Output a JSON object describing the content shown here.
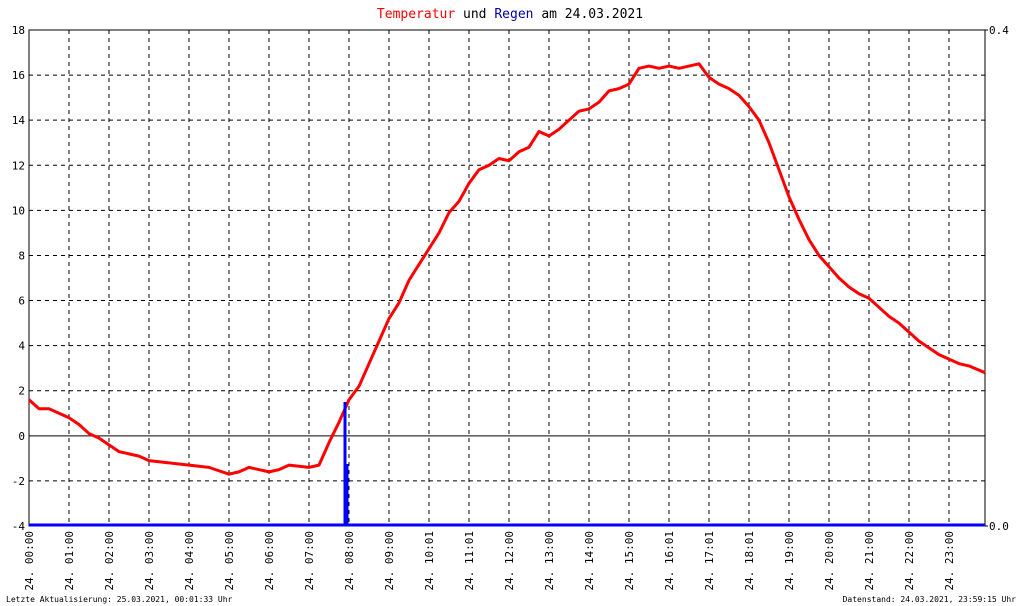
{
  "chart_data": {
    "type": "line",
    "title_parts": [
      "Temperatur",
      "und",
      "Regen",
      "am 24.03.2021"
    ],
    "footer_left": "Letzte Aktualisierung: 25.03.2021, 00:01:33 Uhr",
    "footer_right": "Datenstand: 24.03.2021, 23:59:15 Uhr",
    "xlim": [
      0,
      23.9
    ],
    "xticks": [
      {
        "value": 0,
        "label": "24. 00:00"
      },
      {
        "value": 1,
        "label": "24. 01:00"
      },
      {
        "value": 2,
        "label": "24. 02:00"
      },
      {
        "value": 3,
        "label": "24. 03:00"
      },
      {
        "value": 4,
        "label": "24. 04:00"
      },
      {
        "value": 5,
        "label": "24. 05:00"
      },
      {
        "value": 6,
        "label": "24. 06:00"
      },
      {
        "value": 7,
        "label": "24. 07:00"
      },
      {
        "value": 8,
        "label": "24. 08:00"
      },
      {
        "value": 9,
        "label": "24. 09:00"
      },
      {
        "value": 10,
        "label": "24. 10:01"
      },
      {
        "value": 11,
        "label": "24. 11:01"
      },
      {
        "value": 12,
        "label": "24. 12:00"
      },
      {
        "value": 13,
        "label": "24. 13:00"
      },
      {
        "value": 14,
        "label": "24. 14:00"
      },
      {
        "value": 15,
        "label": "24. 15:00"
      },
      {
        "value": 16,
        "label": "24. 16:01"
      },
      {
        "value": 17,
        "label": "24. 17:01"
      },
      {
        "value": 18,
        "label": "24. 18:01"
      },
      {
        "value": 19,
        "label": "24. 19:00"
      },
      {
        "value": 20,
        "label": "24. 20:00"
      },
      {
        "value": 21,
        "label": "24. 21:00"
      },
      {
        "value": 22,
        "label": "24. 22:00"
      },
      {
        "value": 23,
        "label": "24. 23:00"
      }
    ],
    "ylim": [
      -4,
      18
    ],
    "yticks": [
      -4,
      -2,
      0,
      2,
      4,
      6,
      8,
      10,
      12,
      14,
      16,
      18
    ],
    "y2lim": [
      0,
      0.4
    ],
    "y2ticks": [
      {
        "value": 0,
        "label": "0.0"
      },
      0.4
    ],
    "grid": true,
    "series": [
      {
        "name": "Temperatur",
        "color": "#ff0000",
        "type": "line",
        "x": [
          0,
          0.25,
          0.5,
          0.75,
          1,
          1.25,
          1.5,
          1.75,
          2,
          2.25,
          2.5,
          2.75,
          3,
          3.5,
          4,
          4.5,
          5,
          5.25,
          5.5,
          6,
          6.25,
          6.5,
          7,
          7.25,
          7.5,
          7.75,
          8,
          8.25,
          8.5,
          8.75,
          9,
          9.25,
          9.5,
          9.75,
          10,
          10.25,
          10.5,
          10.75,
          11,
          11.25,
          11.5,
          11.75,
          12,
          12.25,
          12.5,
          12.75,
          13,
          13.25,
          13.5,
          13.75,
          14,
          14.25,
          14.5,
          14.75,
          15,
          15.25,
          15.5,
          15.75,
          16,
          16.25,
          16.5,
          16.75,
          17,
          17.25,
          17.5,
          17.75,
          18,
          18.25,
          18.5,
          18.75,
          19,
          19.25,
          19.5,
          19.75,
          20,
          20.25,
          20.5,
          20.75,
          21,
          21.25,
          21.5,
          21.75,
          22,
          22.25,
          22.5,
          22.75,
          23,
          23.25,
          23.5,
          23.9
        ],
        "values": [
          1.6,
          1.2,
          1.2,
          1.0,
          0.8,
          0.5,
          0.1,
          -0.1,
          -0.4,
          -0.7,
          -0.8,
          -0.9,
          -1.1,
          -1.2,
          -1.3,
          -1.4,
          -1.7,
          -1.6,
          -1.4,
          -1.6,
          -1.5,
          -1.3,
          -1.4,
          -1.3,
          -0.3,
          0.6,
          1.6,
          2.2,
          3.2,
          4.2,
          5.2,
          5.9,
          6.9,
          7.6,
          8.3,
          9.0,
          9.9,
          10.4,
          11.2,
          11.8,
          12.0,
          12.3,
          12.2,
          12.6,
          12.8,
          13.5,
          13.3,
          13.6,
          14.0,
          14.4,
          14.5,
          14.8,
          15.3,
          15.4,
          15.6,
          16.3,
          16.4,
          16.3,
          16.4,
          16.3,
          16.4,
          16.5,
          15.9,
          15.6,
          15.4,
          15.1,
          14.6,
          14.0,
          13.0,
          11.8,
          10.6,
          9.6,
          8.7,
          8.0,
          7.5,
          7.0,
          6.6,
          6.3,
          6.1,
          5.7,
          5.3,
          5.0,
          4.6,
          4.2,
          3.9,
          3.6,
          3.4,
          3.2,
          3.1,
          2.8
        ]
      },
      {
        "name": "Regen",
        "color": "#0000ff",
        "type": "bar",
        "axis": "y2",
        "x": [
          7.9,
          7.95
        ],
        "values": [
          0.1,
          0.05
        ]
      }
    ]
  }
}
